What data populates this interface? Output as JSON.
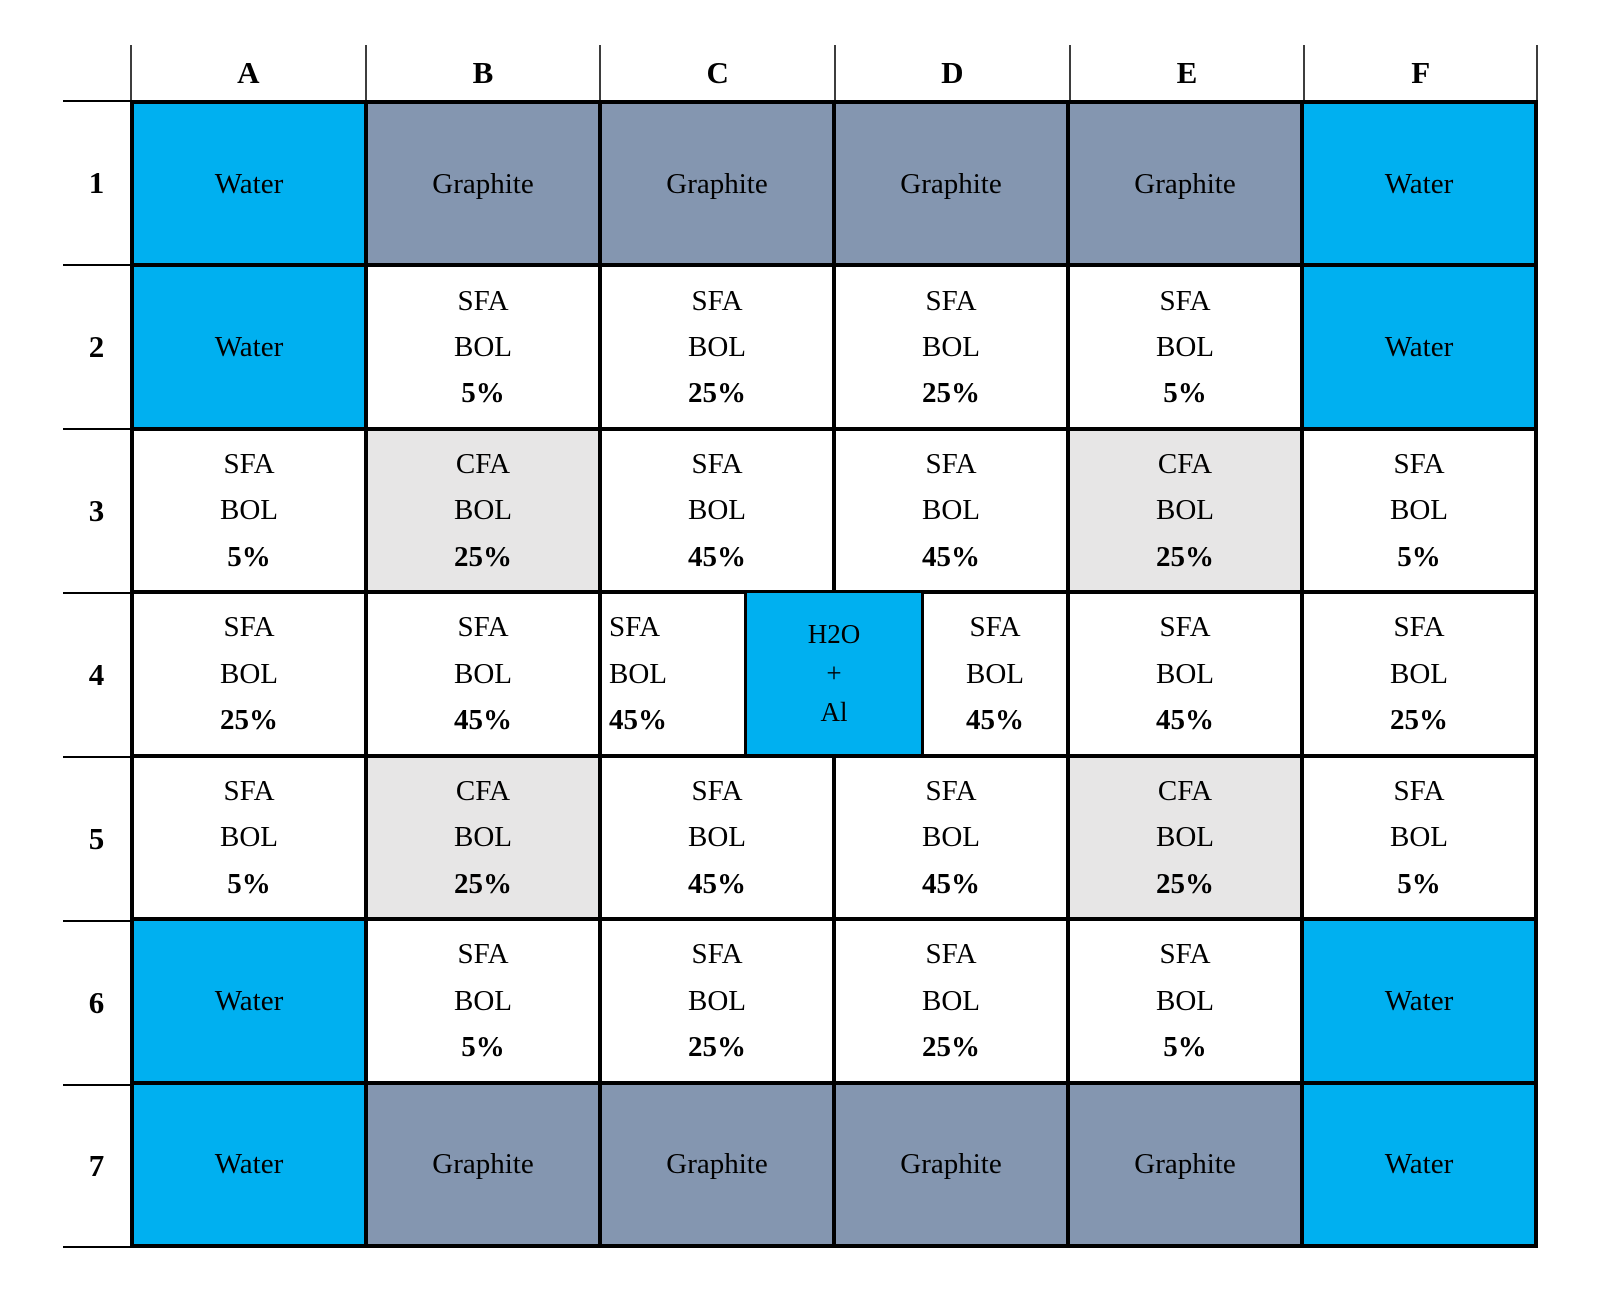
{
  "colors": {
    "water": "#00B0F0",
    "graphite": "#8496B0",
    "cfa_fill": "#E7E6E6",
    "sfa_fill": "#FFFFFF",
    "gridline": "#000000"
  },
  "grid": {
    "column_headers": [
      "A",
      "B",
      "C",
      "D",
      "E",
      "F"
    ],
    "row_headers": [
      "1",
      "2",
      "3",
      "4",
      "5",
      "6",
      "7"
    ],
    "rows": [
      [
        {
          "type": "water",
          "lines": [
            "Water"
          ]
        },
        {
          "type": "graphite",
          "lines": [
            "Graphite"
          ]
        },
        {
          "type": "graphite",
          "lines": [
            "Graphite"
          ]
        },
        {
          "type": "graphite",
          "lines": [
            "Graphite"
          ]
        },
        {
          "type": "graphite",
          "lines": [
            "Graphite"
          ]
        },
        {
          "type": "water",
          "lines": [
            "Water"
          ]
        }
      ],
      [
        {
          "type": "water",
          "lines": [
            "Water"
          ]
        },
        {
          "type": "sfa",
          "lines": [
            "SFA",
            "BOL",
            "5%"
          ]
        },
        {
          "type": "sfa",
          "lines": [
            "SFA",
            "BOL",
            "25%"
          ]
        },
        {
          "type": "sfa",
          "lines": [
            "SFA",
            "BOL",
            "25%"
          ]
        },
        {
          "type": "sfa",
          "lines": [
            "SFA",
            "BOL",
            "5%"
          ]
        },
        {
          "type": "water",
          "lines": [
            "Water"
          ]
        }
      ],
      [
        {
          "type": "sfa",
          "lines": [
            "SFA",
            "BOL",
            "5%"
          ]
        },
        {
          "type": "cfa",
          "lines": [
            "CFA",
            "BOL",
            "25%"
          ]
        },
        {
          "type": "sfa",
          "lines": [
            "SFA",
            "BOL",
            "45%"
          ]
        },
        {
          "type": "sfa",
          "lines": [
            "SFA",
            "BOL",
            "45%"
          ]
        },
        {
          "type": "cfa",
          "lines": [
            "CFA",
            "BOL",
            "25%"
          ]
        },
        {
          "type": "sfa",
          "lines": [
            "SFA",
            "BOL",
            "5%"
          ]
        }
      ],
      [
        {
          "type": "sfa",
          "lines": [
            "SFA",
            "BOL",
            "25%"
          ]
        },
        {
          "type": "sfa",
          "lines": [
            "SFA",
            "BOL",
            "45%"
          ]
        },
        {
          "type": "sfa",
          "lines": [
            "SFA",
            "BOL",
            "45%"
          ],
          "align": "left"
        },
        {
          "type": "sfa",
          "lines": [
            "SFA",
            "BOL",
            "45%"
          ],
          "align": "strip-right"
        },
        {
          "type": "sfa",
          "lines": [
            "SFA",
            "BOL",
            "45%"
          ]
        },
        {
          "type": "sfa",
          "lines": [
            "SFA",
            "BOL",
            "25%"
          ]
        }
      ],
      [
        {
          "type": "sfa",
          "lines": [
            "SFA",
            "BOL",
            "5%"
          ]
        },
        {
          "type": "cfa",
          "lines": [
            "CFA",
            "BOL",
            "25%"
          ]
        },
        {
          "type": "sfa",
          "lines": [
            "SFA",
            "BOL",
            "45%"
          ]
        },
        {
          "type": "sfa",
          "lines": [
            "SFA",
            "BOL",
            "45%"
          ]
        },
        {
          "type": "cfa",
          "lines": [
            "CFA",
            "BOL",
            "25%"
          ]
        },
        {
          "type": "sfa",
          "lines": [
            "SFA",
            "BOL",
            "5%"
          ]
        }
      ],
      [
        {
          "type": "water",
          "lines": [
            "Water"
          ]
        },
        {
          "type": "sfa",
          "lines": [
            "SFA",
            "BOL",
            "5%"
          ]
        },
        {
          "type": "sfa",
          "lines": [
            "SFA",
            "BOL",
            "25%"
          ]
        },
        {
          "type": "sfa",
          "lines": [
            "SFA",
            "BOL",
            "25%"
          ]
        },
        {
          "type": "sfa",
          "lines": [
            "SFA",
            "BOL",
            "5%"
          ]
        },
        {
          "type": "water",
          "lines": [
            "Water"
          ]
        }
      ],
      [
        {
          "type": "water",
          "lines": [
            "Water"
          ]
        },
        {
          "type": "graphite",
          "lines": [
            "Graphite"
          ]
        },
        {
          "type": "graphite",
          "lines": [
            "Graphite"
          ]
        },
        {
          "type": "graphite",
          "lines": [
            "Graphite"
          ]
        },
        {
          "type": "graphite",
          "lines": [
            "Graphite"
          ]
        },
        {
          "type": "water",
          "lines": [
            "Water"
          ]
        }
      ]
    ],
    "center_insert": {
      "type": "water",
      "lines": [
        "H2O",
        "+",
        "Al"
      ]
    }
  }
}
